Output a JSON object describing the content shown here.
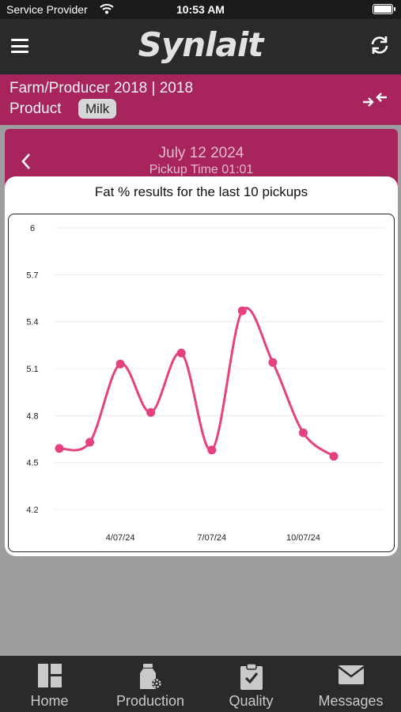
{
  "status_bar": {
    "carrier": "Service Provider",
    "time": "10:53 AM"
  },
  "header": {
    "logo": "Synlait",
    "menu_icon": "menu-icon",
    "refresh_icon": "refresh-icon"
  },
  "farm": {
    "title": "Farm/Producer 2018 | 2018",
    "product_label": "Product",
    "product_value": "Milk"
  },
  "pickup": {
    "date": "July 12 2024",
    "time": "Pickup Time 01:01"
  },
  "chart": {
    "title": "Fat % results for the last 10 pickups"
  },
  "chart_data": {
    "type": "line",
    "title": "Fat % results for the last 10 pickups",
    "x": [
      "2/07/24",
      "3/07/24",
      "4/07/24",
      "5/07/24",
      "6/07/24",
      "7/07/24",
      "8/07/24",
      "9/07/24",
      "10/07/24",
      "11/07/24"
    ],
    "x_tick_labels": [
      "4/07/24",
      "7/07/24",
      "10/07/24"
    ],
    "series": [
      {
        "values": [
          4.59,
          4.63,
          5.13,
          4.82,
          5.2,
          4.58,
          5.47,
          5.14,
          4.69,
          4.54
        ]
      }
    ],
    "y_ticks": [
      4.2,
      4.5,
      4.8,
      5.1,
      5.4,
      5.7,
      6
    ],
    "ylim": [
      4.2,
      6
    ],
    "line_color": "#e5407f",
    "grid": true,
    "smooth": true
  },
  "tabs": [
    {
      "label": "Home",
      "icon": "home-grid-icon"
    },
    {
      "label": "Production",
      "icon": "milk-bottle-icon"
    },
    {
      "label": "Quality",
      "icon": "clipboard-check-icon"
    },
    {
      "label": "Messages",
      "icon": "envelope-icon"
    }
  ],
  "colors": {
    "brand": "#a8245d",
    "header": "#2a2a2a",
    "accent_line": "#e5407f"
  }
}
